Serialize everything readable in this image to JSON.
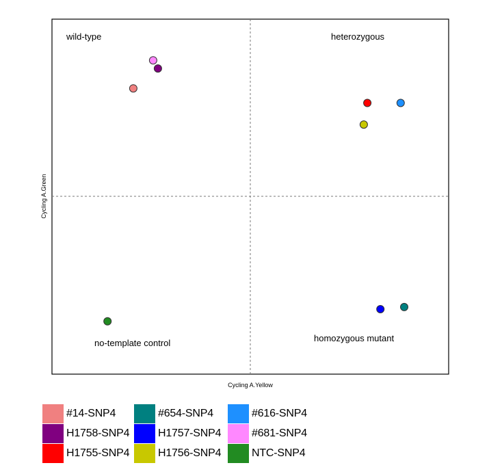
{
  "chart_data": {
    "type": "scatter",
    "title": "",
    "xlabel": "Cycling A.Yellow",
    "ylabel": "Cycling A.Green",
    "xlim": [
      0,
      100
    ],
    "ylim": [
      0,
      100
    ],
    "grid": false,
    "quadrant_labels": {
      "top_left": "wild-type",
      "top_right": "heterozygous",
      "bottom_left": "no-template control",
      "bottom_right": "homozygous mutant"
    },
    "series": [
      {
        "name": "#14-SNP4",
        "color": "#f08080",
        "x": 20.5,
        "y": 80.5
      },
      {
        "name": "#654-SNP4",
        "color": "#008080",
        "x": 88.8,
        "y": 18.9
      },
      {
        "name": "#616-SNP4",
        "color": "#1e90ff",
        "x": 87.9,
        "y": 76.4
      },
      {
        "name": "H1758-SNP4",
        "color": "#800080",
        "x": 26.7,
        "y": 86.1
      },
      {
        "name": "H1757-SNP4",
        "color": "#0000ff",
        "x": 82.8,
        "y": 18.3
      },
      {
        "name": "#681-SNP4",
        "color": "#ff88ff",
        "x": 25.5,
        "y": 88.4
      },
      {
        "name": "H1755-SNP4",
        "color": "#ff0000",
        "x": 79.5,
        "y": 76.4
      },
      {
        "name": "H1756-SNP4",
        "color": "#c8c800",
        "x": 78.6,
        "y": 70.3
      },
      {
        "name": "NTC-SNP4",
        "color": "#228b22",
        "x": 14.0,
        "y": 14.9
      }
    ]
  }
}
